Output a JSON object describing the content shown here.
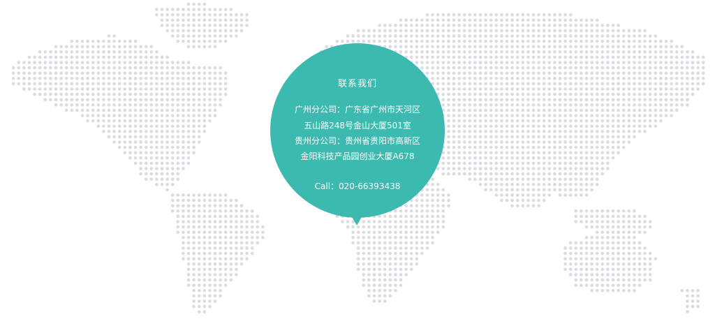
{
  "colors": {
    "dot": "#dadce1",
    "bubble": "#3dbab0",
    "bubble_text": "#ffffff"
  },
  "map": {
    "icon": "world-dot-map-icon"
  },
  "contact": {
    "title": "联系我们",
    "lines": [
      "广州分公司：广东省广州市天河区",
      "五山路248号金山大厦501室",
      "贵州分公司：贵州省贵阳市高新区",
      "金阳科技产品园创业大厦A678"
    ],
    "call": "Call：020-66393438"
  }
}
